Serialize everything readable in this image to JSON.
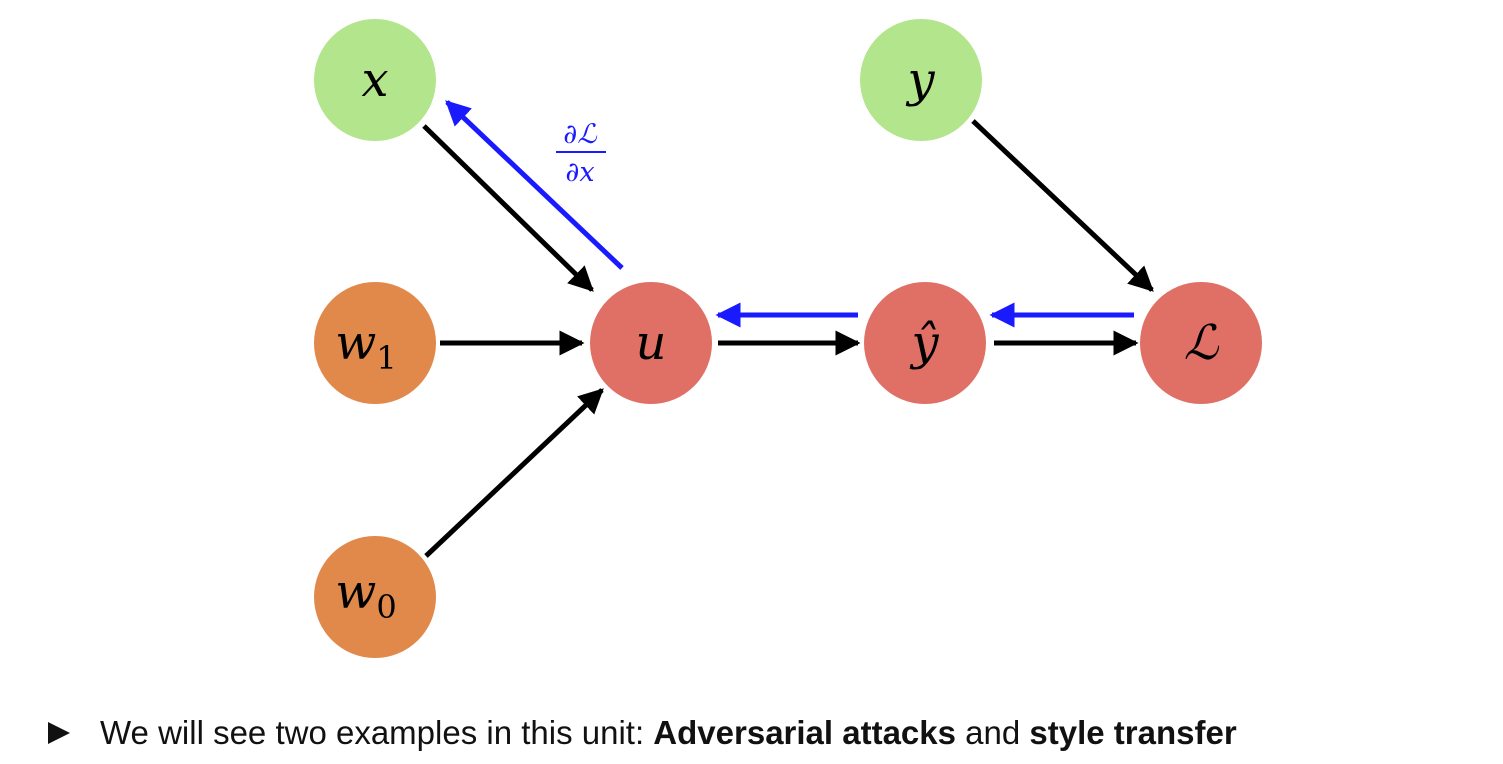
{
  "nodes": [
    {
      "id": "x",
      "label": "x",
      "color": "#b3e58c"
    },
    {
      "id": "y",
      "label": "y",
      "color": "#b3e58c"
    },
    {
      "id": "w1",
      "label": "w",
      "sub": "1",
      "color": "#e0894b"
    },
    {
      "id": "w0",
      "label": "w",
      "sub": "0",
      "color": "#e0894b"
    },
    {
      "id": "u",
      "label": "u",
      "color": "#e07065"
    },
    {
      "id": "yhat",
      "label": "ŷ",
      "color": "#e07065"
    },
    {
      "id": "L",
      "label": "ℒ",
      "color": "#e07065"
    }
  ],
  "edges": [
    {
      "from": "x",
      "to": "u"
    },
    {
      "from": "w1",
      "to": "u"
    },
    {
      "from": "w0",
      "to": "u"
    },
    {
      "from": "u",
      "to": "yhat"
    },
    {
      "from": "yhat",
      "to": "L"
    },
    {
      "from": "y",
      "to": "L"
    }
  ],
  "gradient_edges": [
    {
      "from": "u",
      "to": "x"
    },
    {
      "from": "yhat",
      "to": "u"
    },
    {
      "from": "L",
      "to": "yhat"
    }
  ],
  "gradient_label": {
    "numerator": "∂ℒ",
    "denominator": "∂x"
  },
  "colors": {
    "forward_arrow": "#000000",
    "gradient_arrow": "#1a1aff"
  },
  "bullet": {
    "prefix": "We will see two examples in this unit: ",
    "bold1": "Adversarial attacks",
    "middle": " and ",
    "bold2": "style transfer"
  }
}
